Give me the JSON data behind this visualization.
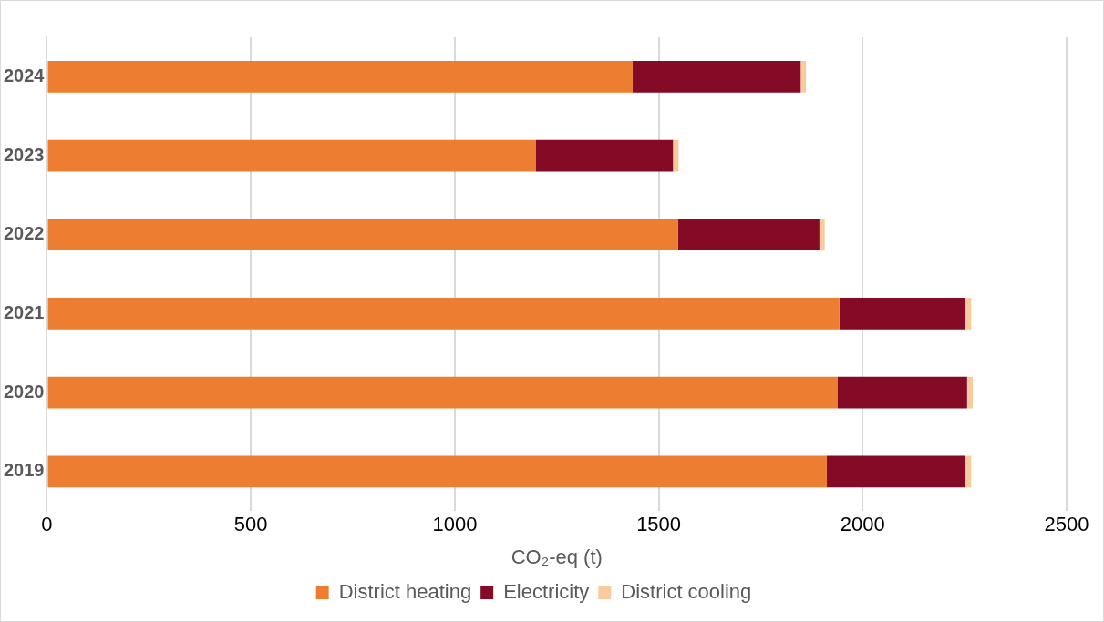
{
  "chart_data": {
    "type": "bar",
    "orientation": "horizontal",
    "stacked": true,
    "categories": [
      "2024",
      "2023",
      "2022",
      "2021",
      "2020",
      "2019"
    ],
    "series": [
      {
        "name": "District heating",
        "color": "#ed7d31",
        "values": [
          1436,
          1198,
          1547,
          1943,
          1939,
          1912
        ]
      },
      {
        "name": "Electricity",
        "color": "#840a25",
        "values": [
          412,
          337,
          347,
          309,
          317,
          340
        ]
      },
      {
        "name": "District cooling",
        "color": "#f8cb9c",
        "values": [
          13,
          14,
          13,
          14,
          14,
          14
        ]
      }
    ],
    "xlabel": "CO₂-eq (t)",
    "xlim": [
      0,
      2500
    ],
    "xticks": [
      0,
      500,
      1000,
      1500,
      2000,
      2500
    ],
    "grid": "x",
    "legend": "bottom"
  }
}
